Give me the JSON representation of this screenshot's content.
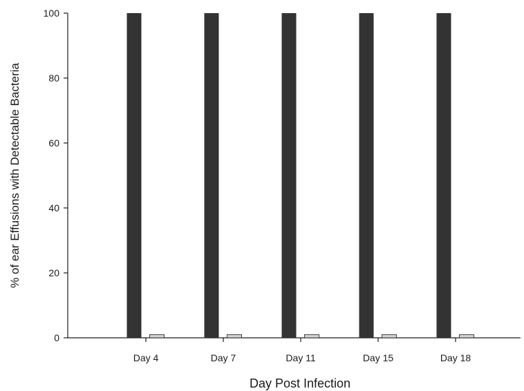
{
  "chart_data": {
    "type": "bar",
    "title": "",
    "xlabel": "Day Post Infection",
    "ylabel": "% of ear Effusions with Detectable Bacteria",
    "categories": [
      "Day 4",
      "Day 7",
      "Day 11",
      "Day 15",
      "Day 18"
    ],
    "series": [
      {
        "values": [
          100,
          100,
          100,
          100,
          100
        ],
        "color": "#333333"
      },
      {
        "values": [
          1,
          1,
          1,
          1,
          1
        ],
        "color": "#d3d3d3"
      }
    ],
    "ylim": [
      0,
      100
    ],
    "yticks": [
      0,
      20,
      40,
      60,
      80,
      100
    ],
    "grid": false,
    "legend": "none"
  }
}
